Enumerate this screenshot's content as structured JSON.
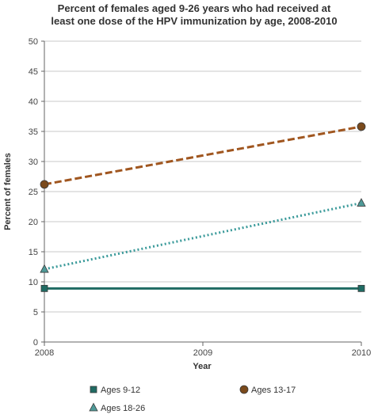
{
  "chart_data": {
    "type": "line",
    "title_lines": [
      "Percent of females aged 9-26 years who had received at",
      "least one dose of the HPV immunization by age, 2008-2010"
    ],
    "xlabel": "Year",
    "ylabel": "Percent of females",
    "x": [
      2008,
      2009,
      2010
    ],
    "x_tick_labels": [
      "2008",
      "2009",
      "2010"
    ],
    "ylim": [
      0,
      50
    ],
    "y_ticks": [
      0,
      5,
      10,
      15,
      20,
      25,
      30,
      35,
      40,
      45,
      50
    ],
    "grid": true,
    "legend_position": "bottom",
    "series": [
      {
        "name": "Ages 9-12",
        "points": [
          [
            2008,
            8.9
          ],
          [
            2010,
            8.9
          ]
        ],
        "color": "#1f6b63",
        "line_style": "solid",
        "marker": "square",
        "marker_color": "#1f6b63"
      },
      {
        "name": "Ages 13-17",
        "points": [
          [
            2008,
            26.2
          ],
          [
            2010,
            35.8
          ]
        ],
        "color": "#a0561f",
        "line_style": "dashed",
        "marker": "circle",
        "marker_color": "#7a4a1c"
      },
      {
        "name": "Ages 18-26",
        "points": [
          [
            2008,
            12.1
          ],
          [
            2010,
            23.1
          ]
        ],
        "color": "#3a9a9a",
        "line_style": "dotted",
        "marker": "triangle",
        "marker_color": "#4f9a98"
      }
    ]
  }
}
